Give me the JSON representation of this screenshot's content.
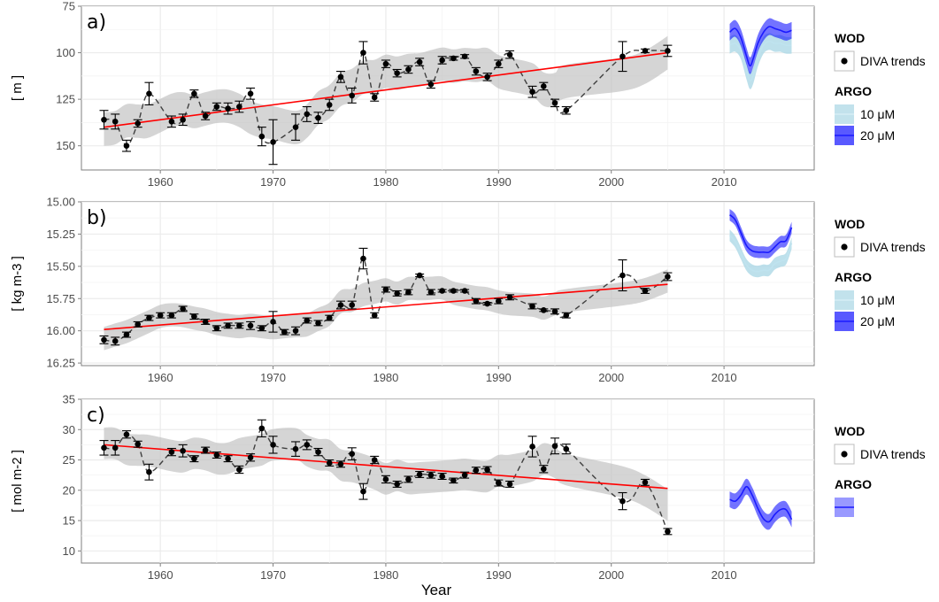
{
  "chart_data": [
    {
      "type": "line",
      "panel_label": "a)",
      "ylabel": "[ m ]",
      "ylim": [
        75,
        163
      ],
      "y_reversed": true,
      "yticks": [
        75,
        100,
        125,
        150
      ],
      "xlim": [
        1953,
        2018
      ],
      "xticks": [
        1960,
        1970,
        1980,
        1990,
        2000,
        2010
      ],
      "grid": true,
      "band_width": 9,
      "series": [
        {
          "name": "DIVA trends",
          "group": "WOD",
          "kind": "points_errorbars_dashed",
          "x": [
            1955,
            1956,
            1957,
            1958,
            1959,
            1961,
            1962,
            1963,
            1964,
            1965,
            1966,
            1967,
            1968,
            1969,
            1970,
            1972,
            1973,
            1974,
            1975,
            1976,
            1977,
            1978,
            1979,
            1980,
            1981,
            1982,
            1983,
            1984,
            1985,
            1986,
            1987,
            1988,
            1989,
            1990,
            1991,
            1993,
            1994,
            1995,
            1996,
            2001,
            2003,
            2005
          ],
          "y": [
            136,
            137,
            150,
            138,
            122,
            137,
            136,
            122,
            134,
            129,
            130,
            129,
            122,
            145,
            148,
            140,
            133,
            135,
            128,
            113,
            123,
            100,
            124,
            106,
            111,
            109,
            105,
            117,
            104,
            103,
            102,
            110,
            113,
            106,
            101,
            121,
            118,
            127,
            131,
            102,
            99,
            99
          ],
          "err": [
            5,
            4,
            3,
            2,
            6,
            3,
            3,
            2,
            2,
            2,
            3,
            3,
            3,
            5,
            12,
            7,
            4,
            3,
            3,
            3,
            4,
            6,
            2,
            2,
            2,
            2,
            2,
            2,
            2,
            1,
            1,
            2,
            2,
            2,
            2,
            3,
            2,
            2,
            2,
            8,
            1,
            3
          ]
        },
        {
          "name": "linear trend",
          "kind": "line",
          "color": "#ff0000",
          "x": [
            1955,
            2005
          ],
          "y": [
            140,
            100
          ]
        },
        {
          "name": "10 μM",
          "group": "ARGO",
          "kind": "line_band",
          "color": "#add8e6",
          "x": [
            2010.5,
            2011,
            2011.5,
            2012,
            2012.3,
            2012.6,
            2013,
            2013.5,
            2014,
            2014.5,
            2015,
            2015.5,
            2016
          ],
          "y": [
            96,
            95,
            99,
            110,
            115,
            112,
            103,
            96,
            94,
            95,
            95,
            96,
            96
          ]
        },
        {
          "name": "20 μM",
          "group": "ARGO",
          "kind": "line_band",
          "color": "#0000ff",
          "x": [
            2010.5,
            2011,
            2011.5,
            2012,
            2012.3,
            2012.6,
            2013,
            2013.5,
            2014,
            2014.5,
            2015,
            2015.5,
            2016
          ],
          "y": [
            89,
            87,
            92,
            102,
            107,
            103,
            95,
            89,
            86,
            87,
            88,
            89,
            88
          ]
        }
      ]
    },
    {
      "type": "line",
      "panel_label": "b)",
      "ylabel": "[ kg m-3 ]",
      "ylim": [
        15.0,
        16.27
      ],
      "y_reversed": true,
      "yticks": [
        15.0,
        15.25,
        15.5,
        15.75,
        16.0,
        16.25
      ],
      "ytick_labels": [
        "15.00",
        "15.25",
        "15.50",
        "15.75",
        "16.00",
        "16.25"
      ],
      "xlim": [
        1953,
        2018
      ],
      "xticks": [
        1960,
        1970,
        1980,
        1990,
        2000,
        2010
      ],
      "grid": true,
      "band_width": 0.09,
      "series": [
        {
          "name": "DIVA trends",
          "group": "WOD",
          "kind": "points_errorbars_dashed",
          "x": [
            1955,
            1956,
            1957,
            1958,
            1959,
            1960,
            1961,
            1962,
            1963,
            1964,
            1965,
            1966,
            1967,
            1968,
            1969,
            1970,
            1971,
            1972,
            1973,
            1974,
            1975,
            1976,
            1977,
            1978,
            1979,
            1980,
            1981,
            1982,
            1983,
            1984,
            1985,
            1986,
            1987,
            1988,
            1989,
            1990,
            1991,
            1993,
            1994,
            1995,
            1996,
            2001,
            2003,
            2005
          ],
          "y": [
            16.07,
            16.08,
            16.03,
            15.95,
            15.9,
            15.88,
            15.88,
            15.83,
            15.89,
            15.93,
            15.98,
            15.96,
            15.96,
            15.96,
            15.98,
            15.93,
            16.01,
            16.0,
            15.92,
            15.94,
            15.9,
            15.8,
            15.8,
            15.44,
            15.88,
            15.68,
            15.71,
            15.7,
            15.57,
            15.7,
            15.69,
            15.69,
            15.69,
            15.77,
            15.79,
            15.77,
            15.74,
            15.81,
            15.84,
            15.85,
            15.88,
            15.57,
            15.69,
            15.58
          ],
          "err": [
            0.03,
            0.03,
            0.02,
            0.02,
            0.02,
            0.02,
            0.02,
            0.02,
            0.02,
            0.02,
            0.02,
            0.02,
            0.02,
            0.03,
            0.02,
            0.08,
            0.02,
            0.03,
            0.02,
            0.02,
            0.02,
            0.03,
            0.03,
            0.08,
            0.02,
            0.02,
            0.02,
            0.02,
            0.01,
            0.02,
            0.01,
            0.01,
            0.01,
            0.02,
            0.01,
            0.02,
            0.02,
            0.02,
            0.01,
            0.02,
            0.02,
            0.12,
            0.02,
            0.03
          ]
        },
        {
          "name": "linear trend",
          "kind": "line",
          "color": "#ff0000",
          "x": [
            1955,
            2005
          ],
          "y": [
            15.99,
            15.64
          ]
        },
        {
          "name": "10 μM",
          "group": "ARGO",
          "kind": "line_band",
          "color": "#add8e6",
          "x": [
            2010.5,
            2011,
            2011.5,
            2012,
            2012.5,
            2013,
            2013.5,
            2014,
            2014.5,
            2015,
            2015.5,
            2016
          ],
          "y": [
            15.26,
            15.31,
            15.4,
            15.49,
            15.53,
            15.54,
            15.53,
            15.53,
            15.48,
            15.46,
            15.44,
            15.32
          ]
        },
        {
          "name": "20 μM",
          "group": "ARGO",
          "kind": "line_band",
          "color": "#0000ff",
          "x": [
            2010.5,
            2011,
            2011.5,
            2012,
            2012.5,
            2013,
            2013.5,
            2014,
            2014.5,
            2015,
            2015.5,
            2016
          ],
          "y": [
            15.1,
            15.14,
            15.24,
            15.34,
            15.38,
            15.39,
            15.39,
            15.39,
            15.35,
            15.31,
            15.3,
            15.2
          ]
        }
      ]
    },
    {
      "type": "line",
      "panel_label": "c)",
      "ylabel": "[ mol m-2 ]",
      "ylim": [
        8,
        35
      ],
      "y_reversed": false,
      "yticks": [
        10,
        15,
        20,
        25,
        30,
        35
      ],
      "xlim": [
        1953,
        2018
      ],
      "xticks": [
        1960,
        1970,
        1980,
        1990,
        2000,
        2010
      ],
      "grid": true,
      "band_width": 2.6,
      "series": [
        {
          "name": "DIVA trends",
          "group": "WOD",
          "kind": "points_errorbars_dashed",
          "x": [
            1955,
            1956,
            1957,
            1958,
            1959,
            1961,
            1962,
            1963,
            1964,
            1965,
            1966,
            1967,
            1968,
            1969,
            1970,
            1972,
            1973,
            1974,
            1975,
            1976,
            1977,
            1978,
            1979,
            1980,
            1981,
            1982,
            1983,
            1984,
            1985,
            1986,
            1987,
            1988,
            1989,
            1990,
            1991,
            1993,
            1994,
            1995,
            1996,
            2001,
            2003,
            2005
          ],
          "y": [
            27,
            27,
            29.2,
            27.6,
            23,
            26.3,
            26.5,
            25.2,
            26.6,
            25.8,
            25.2,
            23.4,
            25.4,
            30.2,
            27.5,
            26.8,
            27.5,
            26.3,
            24.5,
            24.3,
            26,
            19.8,
            25,
            21.8,
            21,
            21.8,
            22.6,
            22.5,
            22.3,
            21.6,
            22.5,
            23.3,
            23.4,
            21.2,
            21,
            27.2,
            23.5,
            27.3,
            26.8,
            18.2,
            21.3,
            13.2
          ]
        },
        {
          "name": "linear trend",
          "kind": "line",
          "color": "#ff0000",
          "x": [
            1955,
            2005
          ],
          "y": [
            27.5,
            20.3
          ]
        },
        {
          "name": "",
          "group": "ARGO",
          "kind": "line_band",
          "color": "#0000ff",
          "x": [
            2010.5,
            2011,
            2011.5,
            2012,
            2012.5,
            2013,
            2013.5,
            2014,
            2014.5,
            2015,
            2015.5,
            2016
          ],
          "y": [
            18.5,
            18.2,
            19.2,
            20.6,
            19.2,
            17.0,
            15.3,
            14.8,
            16.0,
            16.8,
            16.8,
            15.2
          ]
        }
      ],
      "c_err": [
        1.2,
        1.2,
        0.6,
        0.5,
        1.3,
        0.6,
        1.0,
        0.5,
        0.5,
        0.5,
        0.5,
        0.6,
        0.6,
        1.4,
        1.4,
        1.2,
        0.8,
        0.6,
        0.5,
        0.5,
        1.0,
        1.3,
        0.6,
        0.6,
        0.5,
        0.5,
        0.5,
        0.5,
        0.5,
        0.4,
        0.5,
        0.5,
        0.5,
        0.5,
        0.5,
        1.7,
        0.6,
        1.3,
        0.8,
        1.4,
        0.5,
        0.5
      ]
    }
  ],
  "figure": {
    "x_title": "Year",
    "legends": [
      {
        "title_wod": "WOD",
        "diva_label": "DIVA trends",
        "title_argo": "ARGO",
        "argo_items": [
          {
            "label": "10 μM",
            "color": "#add8e6"
          },
          {
            "label": "20 μM",
            "color": "#0000ff"
          }
        ]
      },
      {
        "title_wod": "WOD",
        "diva_label": "DIVA trends",
        "title_argo": "ARGO",
        "argo_items": [
          {
            "label": "10 μM",
            "color": "#add8e6"
          },
          {
            "label": "20 μM",
            "color": "#0000ff"
          }
        ]
      },
      {
        "title_wod": "WOD",
        "diva_label": "DIVA trends",
        "title_argo": "ARGO",
        "argo_items": [
          {
            "label": "",
            "color": "#0000ff"
          }
        ]
      }
    ],
    "colors": {
      "panel_bg": "#ffffff",
      "grid": "#ebebeb",
      "band": "#bebebe",
      "points": "#000000",
      "trend": "#ff0000"
    }
  }
}
